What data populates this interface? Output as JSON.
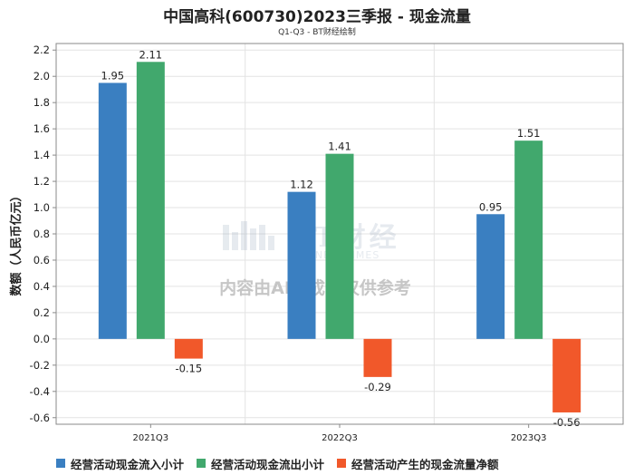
{
  "header": {
    "title": "中国高科(600730)2023三季报 - 现金流量",
    "subtitle": "Q1-Q3 - BT财经绘制"
  },
  "watermark": {
    "logo_text": "BT财经",
    "logo_sub": "BUSINESSTIMES",
    "notice": "内容由AI生成，仅供参考"
  },
  "colors": {
    "series": [
      "#3a7fc1",
      "#41a86d",
      "#f1582a"
    ],
    "grid": "#e3e3e3",
    "axis": "#8a8a8a"
  },
  "chart_data": {
    "type": "bar",
    "title": "中国高科(600730)2023三季报 - 现金流量",
    "subtitle": "Q1-Q3 - BT财经绘制",
    "xlabel": "",
    "ylabel": "数额（人民币亿元）",
    "ylim": [
      -0.65,
      2.25
    ],
    "yticks": [
      -0.6,
      -0.4,
      -0.2,
      0.0,
      0.2,
      0.4,
      0.6,
      0.8,
      1.0,
      1.2,
      1.4,
      1.6,
      1.8,
      2.0,
      2.2
    ],
    "ytick_labels": [
      "-0.6",
      "-0.4",
      "-0.2",
      "0.0",
      "0.2",
      "0.4",
      "0.6",
      "0.8",
      "1.0",
      "1.2",
      "1.4",
      "1.6",
      "1.8",
      "2.0",
      "2.2"
    ],
    "grid": true,
    "legend_position": "bottom",
    "categories": [
      "2021Q3",
      "2022Q3",
      "2023Q3"
    ],
    "series": [
      {
        "name": "经营活动现金流入小计",
        "values": [
          1.95,
          1.12,
          0.95
        ],
        "labels": [
          "1.95",
          "1.12",
          "0.95"
        ]
      },
      {
        "name": "经营活动现金流出小计",
        "values": [
          2.11,
          1.41,
          1.51
        ],
        "labels": [
          "2.11",
          "1.41",
          "1.51"
        ]
      },
      {
        "name": "经营活动产生的现金流量净额",
        "values": [
          -0.15,
          -0.29,
          -0.56
        ],
        "labels": [
          "-0.15",
          "-0.29",
          "-0.56"
        ]
      }
    ]
  }
}
